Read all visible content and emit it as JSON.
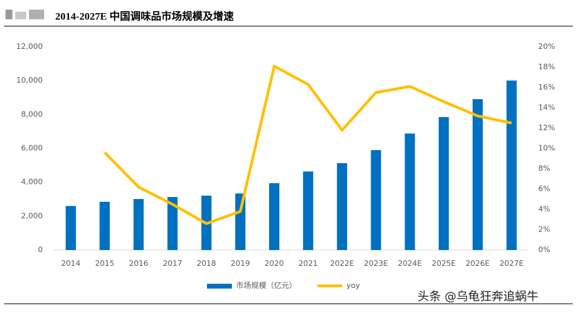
{
  "chart_data": {
    "type": "bar",
    "title": "2014-2027E 中国调味品市场规模及增速",
    "categories": [
      "2014",
      "2015",
      "2016",
      "2017",
      "2018",
      "2019",
      "2020",
      "2021",
      "2022E",
      "2023E",
      "2024E",
      "2025E",
      "2026E",
      "2027E"
    ],
    "series": [
      {
        "name": "市场规模（亿元）",
        "type": "bar",
        "color": "#0070c0",
        "values": [
          2600,
          2850,
          3010,
          3130,
          3210,
          3340,
          3950,
          4640,
          5130,
          5900,
          6880,
          7850,
          8910,
          10010
        ]
      },
      {
        "name": "yoy",
        "type": "line",
        "axis": "y2",
        "color": "#ffc000",
        "values": [
          null,
          9.6,
          6.2,
          4.5,
          2.6,
          3.8,
          18.1,
          16.3,
          11.8,
          15.5,
          16.1,
          14.6,
          13.2,
          12.5
        ]
      }
    ],
    "ylim": [
      0,
      12000
    ],
    "yticks": [
      0,
      {
        "value": 2000,
        "label": "2,000"
      },
      {
        "value": 4000,
        "label": "4,000"
      },
      {
        "value": 6000,
        "label": "6,000"
      },
      {
        "value": 8000,
        "label": "8,000"
      },
      {
        "value": 10000,
        "label": "10,000"
      },
      {
        "value": 12000,
        "label": "12,000"
      }
    ],
    "y2lim": [
      0,
      20
    ],
    "y2ticks": [
      {
        "value": 0,
        "label": "0%"
      },
      {
        "value": 2,
        "label": "2%"
      },
      {
        "value": 4,
        "label": "4%"
      },
      {
        "value": 6,
        "label": "6%"
      },
      {
        "value": 8,
        "label": "8%"
      },
      {
        "value": 10,
        "label": "10%"
      },
      {
        "value": 12,
        "label": "12%"
      },
      {
        "value": 14,
        "label": "14%"
      },
      {
        "value": 16,
        "label": "16%"
      },
      {
        "value": 18,
        "label": "18%"
      },
      {
        "value": 20,
        "label": "20%"
      }
    ],
    "grid": false,
    "legend": "bottom"
  },
  "watermark": "头条 @乌龟狂奔追蜗牛"
}
